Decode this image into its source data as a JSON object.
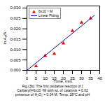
{
  "chart_data": {
    "type": "scatter",
    "xlabel": "Time, min.",
    "ylabel": "ln A₀/A",
    "series": [
      {
        "name": "6x10⁻³ M",
        "type": "scatter",
        "color": "#ff0000",
        "marker": "triangle",
        "x": [
          5,
          10,
          15,
          20,
          25,
          30,
          35
        ],
        "values": [
          0.002,
          0.007,
          0.008,
          0.013,
          0.019,
          0.023,
          0.025
        ]
      },
      {
        "name": "Linear Fitting",
        "type": "line",
        "color": "#0000cc",
        "x": [
          0,
          37
        ],
        "values": [
          0,
          0.026418
        ]
      }
    ],
    "xlim": [
      0,
      40
    ],
    "xticks": [
      0,
      5,
      10,
      15,
      20,
      25,
      30,
      35,
      40
    ],
    "ylim": [
      0,
      0.031
    ],
    "yticks": [
      {
        "value": 0,
        "label": "0.000"
      },
      {
        "value": 0.005,
        "label": "0.005"
      },
      {
        "value": 0.01,
        "label": "0.010"
      },
      {
        "value": 0.015,
        "label": "0.015"
      },
      {
        "value": 0.02,
        "label": "0.020"
      },
      {
        "value": 0.025,
        "label": "0.025"
      },
      {
        "value": 0.03,
        "label": "0.030"
      }
    ],
    "legend": "upper left",
    "annotations": [
      "Fig.(3b): The first oxidative reaction of [",
      "Carbaryl]=6x10⁻³M with wt. of catalysis = 0.02",
      "presence of H₂O₂ = 0.04 M, Temp. 28°C and pH"
    ]
  }
}
